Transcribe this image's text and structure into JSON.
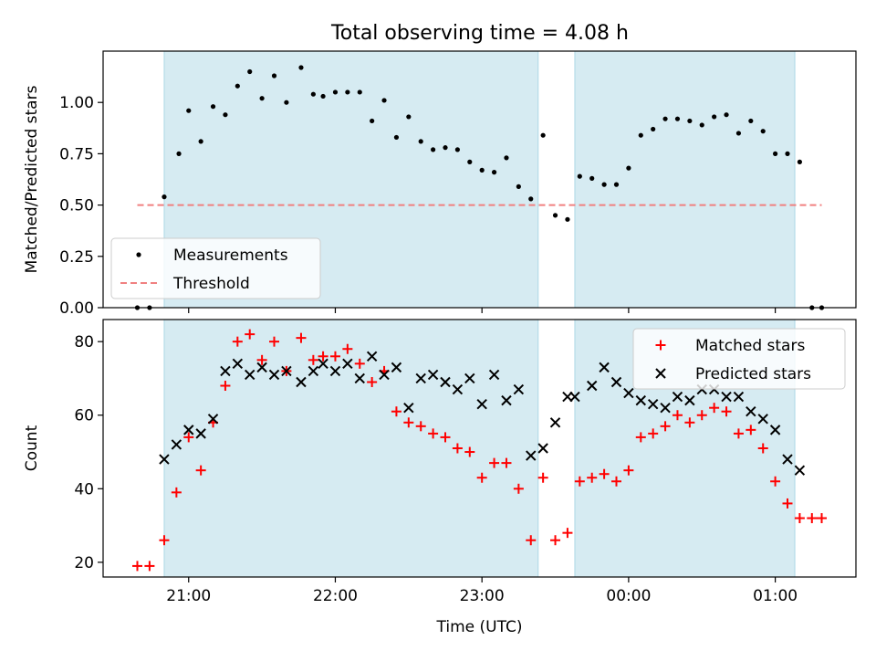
{
  "figure": {
    "title": "Total observing time = 4.08 h"
  },
  "chart_data": [
    {
      "type": "scatter",
      "ylabel": "Matched/Predicted stars",
      "xlabel": "",
      "xlim": [
        "20:25",
        "01:33"
      ],
      "ylim": [
        0,
        1.25
      ],
      "y_ticks": [
        0.0,
        0.25,
        0.5,
        0.75,
        1.0
      ],
      "y_tick_labels": [
        "0.00",
        "0.25",
        "0.50",
        "0.75",
        "1.00"
      ],
      "x_ticks": [
        "21:00",
        "22:00",
        "23:00",
        "00:00",
        "01:00"
      ],
      "shaded_intervals": [
        [
          "20:50",
          "23:23"
        ],
        [
          "23:38",
          "01:08"
        ]
      ],
      "legend": {
        "placement": "lower-left",
        "entries": [
          "Measurements",
          "Threshold"
        ]
      },
      "series": [
        {
          "name": "Measurements",
          "color": "#000000",
          "marker": "dot",
          "points": [
            [
              "20:39",
              0.0
            ],
            [
              "20:44",
              0.0
            ],
            [
              "20:50",
              0.54
            ],
            [
              "20:56",
              0.75
            ],
            [
              "21:00",
              0.96
            ],
            [
              "21:05",
              0.81
            ],
            [
              "21:10",
              0.98
            ],
            [
              "21:15",
              0.94
            ],
            [
              "21:20",
              1.08
            ],
            [
              "21:25",
              1.15
            ],
            [
              "21:30",
              1.02
            ],
            [
              "21:35",
              1.13
            ],
            [
              "21:40",
              1.0
            ],
            [
              "21:46",
              1.17
            ],
            [
              "21:51",
              1.04
            ],
            [
              "21:55",
              1.03
            ],
            [
              "22:00",
              1.05
            ],
            [
              "22:05",
              1.05
            ],
            [
              "22:10",
              1.05
            ],
            [
              "22:15",
              0.91
            ],
            [
              "22:20",
              1.01
            ],
            [
              "22:25",
              0.83
            ],
            [
              "22:30",
              0.93
            ],
            [
              "22:35",
              0.81
            ],
            [
              "22:40",
              0.77
            ],
            [
              "22:45",
              0.78
            ],
            [
              "22:50",
              0.77
            ],
            [
              "22:55",
              0.71
            ],
            [
              "23:00",
              0.67
            ],
            [
              "23:05",
              0.66
            ],
            [
              "23:10",
              0.73
            ],
            [
              "23:15",
              0.59
            ],
            [
              "23:20",
              0.53
            ],
            [
              "23:25",
              0.84
            ],
            [
              "23:30",
              0.45
            ],
            [
              "23:35",
              0.43
            ],
            [
              "23:40",
              0.64
            ],
            [
              "23:45",
              0.63
            ],
            [
              "23:50",
              0.6
            ],
            [
              "23:55",
              0.6
            ],
            [
              "00:00",
              0.68
            ],
            [
              "00:05",
              0.84
            ],
            [
              "00:10",
              0.87
            ],
            [
              "00:15",
              0.92
            ],
            [
              "00:20",
              0.92
            ],
            [
              "00:25",
              0.91
            ],
            [
              "00:30",
              0.89
            ],
            [
              "00:35",
              0.93
            ],
            [
              "00:40",
              0.94
            ],
            [
              "00:45",
              0.85
            ],
            [
              "00:50",
              0.91
            ],
            [
              "00:55",
              0.86
            ],
            [
              "01:00",
              0.75
            ],
            [
              "01:05",
              0.75
            ],
            [
              "01:10",
              0.71
            ],
            [
              "01:15",
              0.0
            ],
            [
              "01:19",
              0.0
            ]
          ]
        },
        {
          "name": "Threshold",
          "color": "#f08080",
          "style": "dashed",
          "points": [
            [
              "20:39",
              0.5
            ],
            [
              "01:19",
              0.5
            ]
          ]
        }
      ]
    },
    {
      "type": "scatter",
      "ylabel": "Count",
      "xlabel": "Time (UTC)",
      "xlim": [
        "20:25",
        "01:33"
      ],
      "ylim": [
        16,
        86
      ],
      "y_ticks": [
        20,
        40,
        60,
        80
      ],
      "y_tick_labels": [
        "20",
        "40",
        "60",
        "80"
      ],
      "x_ticks": [
        "21:00",
        "22:00",
        "23:00",
        "00:00",
        "01:00"
      ],
      "shaded_intervals": [
        [
          "20:50",
          "23:23"
        ],
        [
          "23:38",
          "01:08"
        ]
      ],
      "legend": {
        "placement": "top-right",
        "entries": [
          "Matched stars",
          "Predicted stars"
        ]
      },
      "series": [
        {
          "name": "Matched stars",
          "color": "#ff0000",
          "marker": "plus",
          "points": [
            [
              "20:39",
              19
            ],
            [
              "20:44",
              19
            ],
            [
              "20:50",
              26
            ],
            [
              "20:55",
              39
            ],
            [
              "21:00",
              54
            ],
            [
              "21:05",
              45
            ],
            [
              "21:10",
              58
            ],
            [
              "21:15",
              68
            ],
            [
              "21:20",
              80
            ],
            [
              "21:25",
              82
            ],
            [
              "21:30",
              75
            ],
            [
              "21:35",
              80
            ],
            [
              "21:40",
              72
            ],
            [
              "21:46",
              81
            ],
            [
              "21:51",
              75
            ],
            [
              "21:55",
              76
            ],
            [
              "22:00",
              76
            ],
            [
              "22:05",
              78
            ],
            [
              "22:10",
              74
            ],
            [
              "22:15",
              69
            ],
            [
              "22:20",
              72
            ],
            [
              "22:25",
              61
            ],
            [
              "22:30",
              58
            ],
            [
              "22:35",
              57
            ],
            [
              "22:40",
              55
            ],
            [
              "22:45",
              54
            ],
            [
              "22:50",
              51
            ],
            [
              "22:55",
              50
            ],
            [
              "23:00",
              43
            ],
            [
              "23:05",
              47
            ],
            [
              "23:10",
              47
            ],
            [
              "23:15",
              40
            ],
            [
              "23:20",
              26
            ],
            [
              "23:25",
              43
            ],
            [
              "23:30",
              26
            ],
            [
              "23:35",
              28
            ],
            [
              "23:40",
              42
            ],
            [
              "23:45",
              43
            ],
            [
              "23:50",
              44
            ],
            [
              "23:55",
              42
            ],
            [
              "00:00",
              45
            ],
            [
              "00:05",
              54
            ],
            [
              "00:10",
              55
            ],
            [
              "00:15",
              57
            ],
            [
              "00:20",
              60
            ],
            [
              "00:25",
              58
            ],
            [
              "00:30",
              60
            ],
            [
              "00:35",
              62
            ],
            [
              "00:40",
              61
            ],
            [
              "00:45",
              55
            ],
            [
              "00:50",
              56
            ],
            [
              "00:55",
              51
            ],
            [
              "01:00",
              42
            ],
            [
              "01:05",
              36
            ],
            [
              "01:10",
              32
            ],
            [
              "01:15",
              32
            ],
            [
              "01:19",
              32
            ]
          ]
        },
        {
          "name": "Predicted stars",
          "color": "#000000",
          "marker": "x",
          "points": [
            [
              "20:50",
              48
            ],
            [
              "20:55",
              52
            ],
            [
              "21:00",
              56
            ],
            [
              "21:05",
              55
            ],
            [
              "21:10",
              59
            ],
            [
              "21:15",
              72
            ],
            [
              "21:20",
              74
            ],
            [
              "21:25",
              71
            ],
            [
              "21:30",
              73
            ],
            [
              "21:35",
              71
            ],
            [
              "21:40",
              72
            ],
            [
              "21:46",
              69
            ],
            [
              "21:51",
              72
            ],
            [
              "21:55",
              74
            ],
            [
              "22:00",
              72
            ],
            [
              "22:05",
              74
            ],
            [
              "22:10",
              70
            ],
            [
              "22:15",
              76
            ],
            [
              "22:20",
              71
            ],
            [
              "22:25",
              73
            ],
            [
              "22:30",
              62
            ],
            [
              "22:35",
              70
            ],
            [
              "22:40",
              71
            ],
            [
              "22:45",
              69
            ],
            [
              "22:50",
              67
            ],
            [
              "22:55",
              70
            ],
            [
              "23:00",
              63
            ],
            [
              "23:05",
              71
            ],
            [
              "23:10",
              64
            ],
            [
              "23:15",
              67
            ],
            [
              "23:20",
              49
            ],
            [
              "23:25",
              51
            ],
            [
              "23:30",
              58
            ],
            [
              "23:35",
              65
            ],
            [
              "23:38",
              65
            ],
            [
              "23:45",
              68
            ],
            [
              "23:50",
              73
            ],
            [
              "23:55",
              69
            ],
            [
              "00:00",
              66
            ],
            [
              "00:05",
              64
            ],
            [
              "00:10",
              63
            ],
            [
              "00:15",
              62
            ],
            [
              "00:20",
              65
            ],
            [
              "00:25",
              64
            ],
            [
              "00:30",
              67
            ],
            [
              "00:35",
              67
            ],
            [
              "00:40",
              65
            ],
            [
              "00:45",
              65
            ],
            [
              "00:50",
              61
            ],
            [
              "00:55",
              59
            ],
            [
              "01:00",
              56
            ],
            [
              "01:05",
              48
            ],
            [
              "01:10",
              45
            ]
          ]
        }
      ]
    }
  ]
}
